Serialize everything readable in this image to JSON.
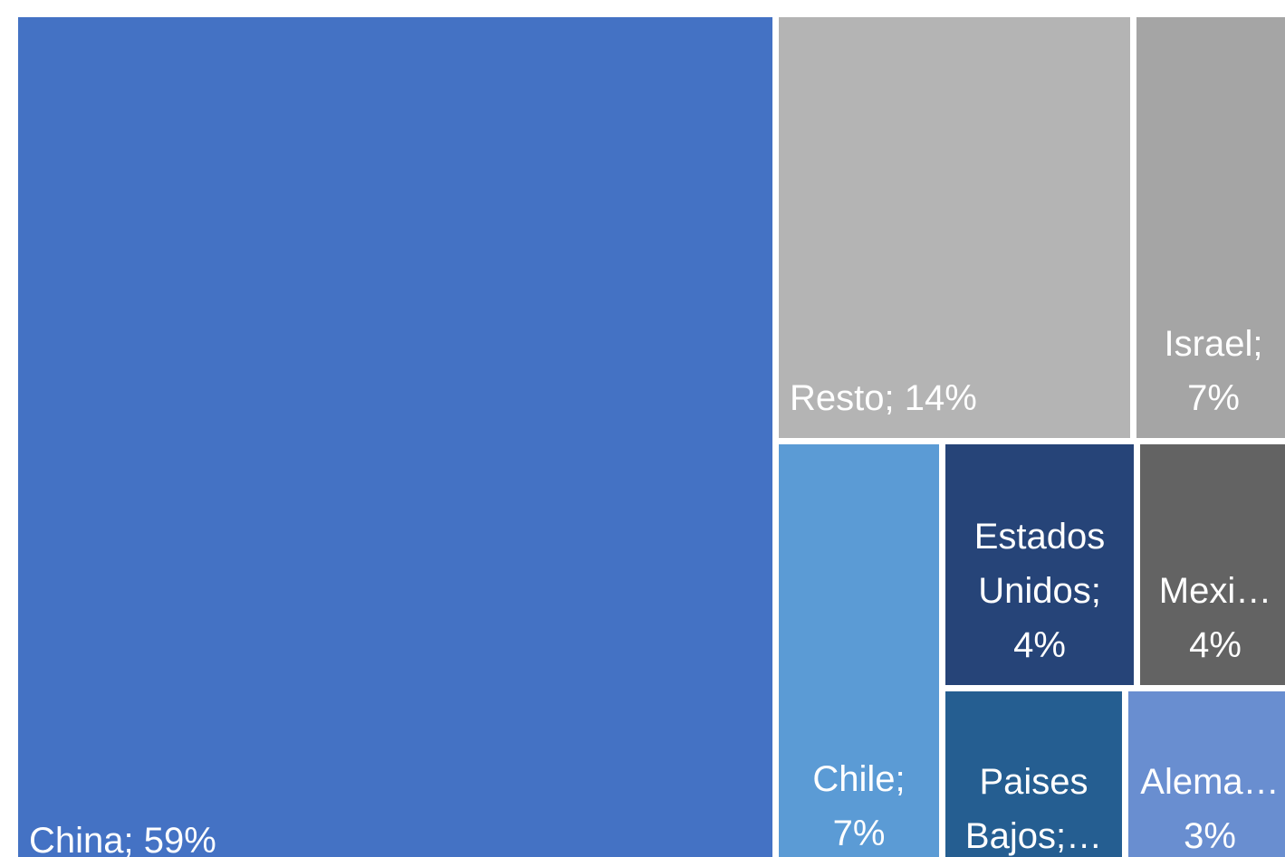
{
  "chart_data": {
    "type": "treemap",
    "categories": [
      "China",
      "Resto",
      "Israel",
      "Chile",
      "Estados Unidos",
      "Mexico",
      "Paises Bajos",
      "Alemania"
    ],
    "values": [
      59,
      14,
      7,
      7,
      4,
      4,
      3,
      3
    ],
    "value_labels": [
      "China; 59%",
      "Resto; 14%",
      "Israel; 7%",
      "Chile; 7%",
      "Estados Unidos; 4%",
      "Mexi… 4%",
      "Paises Bajos;…",
      "Alema… 3%"
    ],
    "colors": [
      "#4472c4",
      "#b4b4b4",
      "#a5a5a5",
      "#5b9bd5",
      "#264478",
      "#636363",
      "#255e91",
      "#698ed0"
    ]
  }
}
